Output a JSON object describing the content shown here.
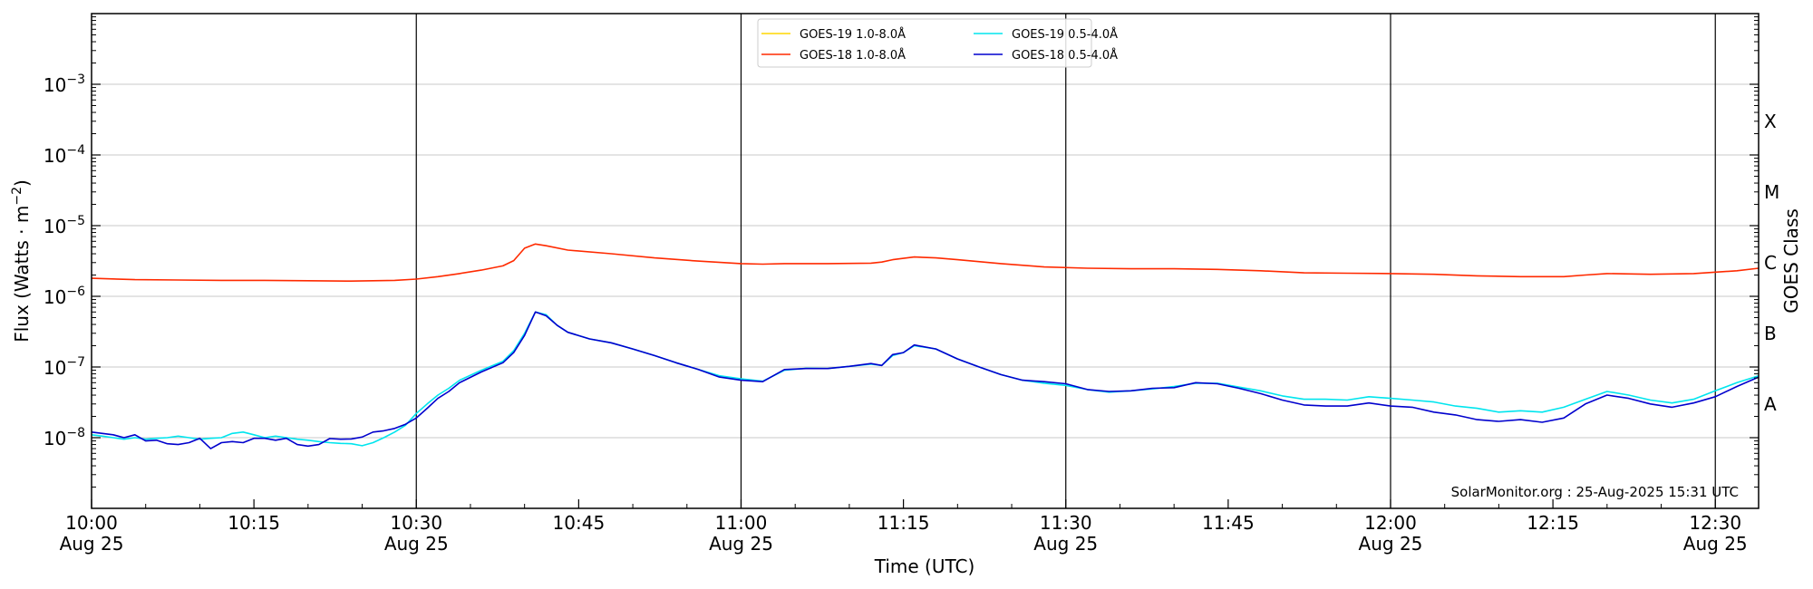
{
  "chart_data": {
    "type": "line",
    "xlabel": "Time (UTC)",
    "ylabel_main": "Flux (Watts · m",
    "ylabel_sup": "−2",
    "ylabel_close": ")",
    "ylabel_right": "GOES Class",
    "y_scale": "log",
    "ylim": [
      1e-09,
      0.01
    ],
    "xlim_minutes_after_1000": [
      0,
      154
    ],
    "grid": "horizontal",
    "legend_position": "top-center",
    "credit": "SolarMonitor.org : 25-Aug-2025 15:31 UTC",
    "y_ticks": [
      {
        "value": 1e-08,
        "base": "10",
        "exp": "−8"
      },
      {
        "value": 1e-07,
        "base": "10",
        "exp": "−7"
      },
      {
        "value": 1e-06,
        "base": "10",
        "exp": "−6"
      },
      {
        "value": 1e-05,
        "base": "10",
        "exp": "−5"
      },
      {
        "value": 0.0001,
        "base": "10",
        "exp": "−4"
      },
      {
        "value": 0.001,
        "base": "10",
        "exp": "−3"
      }
    ],
    "class_labels": [
      {
        "label": "A",
        "value": 3e-08
      },
      {
        "label": "B",
        "value": 3e-07
      },
      {
        "label": "C",
        "value": 3e-06
      },
      {
        "label": "M",
        "value": 3e-05
      },
      {
        "label": "X",
        "value": 0.0003
      }
    ],
    "x_ticks": [
      {
        "minute": 0,
        "time": "10:00",
        "date": "Aug 25"
      },
      {
        "minute": 15,
        "time": "10:15",
        "date": ""
      },
      {
        "minute": 30,
        "time": "10:30",
        "date": "Aug 25"
      },
      {
        "minute": 45,
        "time": "10:45",
        "date": ""
      },
      {
        "minute": 60,
        "time": "11:00",
        "date": "Aug 25"
      },
      {
        "minute": 75,
        "time": "11:15",
        "date": ""
      },
      {
        "minute": 90,
        "time": "11:30",
        "date": "Aug 25"
      },
      {
        "minute": 105,
        "time": "11:45",
        "date": ""
      },
      {
        "minute": 120,
        "time": "12:00",
        "date": "Aug 25"
      },
      {
        "minute": 135,
        "time": "12:15",
        "date": ""
      },
      {
        "minute": 150,
        "time": "12:30",
        "date": "Aug 25"
      }
    ],
    "vertical_lines_minutes": [
      30,
      60,
      90,
      120,
      150
    ],
    "series": [
      {
        "name": "GOES-19 1.0-8.0Å",
        "color": "#ffd700",
        "points": []
      },
      {
        "name": "GOES-18 1.0-8.0Å",
        "color": "#ff2a00",
        "points": [
          [
            0,
            1.8e-06
          ],
          [
            4,
            1.72e-06
          ],
          [
            8,
            1.7e-06
          ],
          [
            12,
            1.68e-06
          ],
          [
            16,
            1.68e-06
          ],
          [
            20,
            1.66e-06
          ],
          [
            24,
            1.64e-06
          ],
          [
            28,
            1.68e-06
          ],
          [
            30,
            1.75e-06
          ],
          [
            32,
            1.9e-06
          ],
          [
            34,
            2.1e-06
          ],
          [
            36,
            2.35e-06
          ],
          [
            38,
            2.7e-06
          ],
          [
            39,
            3.2e-06
          ],
          [
            40,
            4.8e-06
          ],
          [
            41,
            5.5e-06
          ],
          [
            42,
            5.2e-06
          ],
          [
            44,
            4.5e-06
          ],
          [
            48,
            4e-06
          ],
          [
            52,
            3.5e-06
          ],
          [
            56,
            3.15e-06
          ],
          [
            60,
            2.9e-06
          ],
          [
            62,
            2.85e-06
          ],
          [
            64,
            2.9e-06
          ],
          [
            68,
            2.9e-06
          ],
          [
            72,
            2.95e-06
          ],
          [
            73,
            3.05e-06
          ],
          [
            74,
            3.3e-06
          ],
          [
            76,
            3.6e-06
          ],
          [
            78,
            3.5e-06
          ],
          [
            80,
            3.3e-06
          ],
          [
            84,
            2.9e-06
          ],
          [
            88,
            2.6e-06
          ],
          [
            92,
            2.5e-06
          ],
          [
            96,
            2.45e-06
          ],
          [
            100,
            2.45e-06
          ],
          [
            104,
            2.4e-06
          ],
          [
            108,
            2.3e-06
          ],
          [
            112,
            2.15e-06
          ],
          [
            116,
            2.12e-06
          ],
          [
            120,
            2.1e-06
          ],
          [
            124,
            2.05e-06
          ],
          [
            128,
            1.95e-06
          ],
          [
            132,
            1.9e-06
          ],
          [
            136,
            1.9e-06
          ],
          [
            138,
            2e-06
          ],
          [
            140,
            2.1e-06
          ],
          [
            144,
            2.05e-06
          ],
          [
            148,
            2.1e-06
          ],
          [
            152,
            2.3e-06
          ],
          [
            154,
            2.5e-06
          ]
        ]
      },
      {
        "name": "GOES-19 0.5-4.0Å",
        "color": "#00e5ee",
        "points": [
          [
            0,
            1.1e-08
          ],
          [
            1,
            1.05e-08
          ],
          [
            2,
            1e-08
          ],
          [
            3,
            9.5e-09
          ],
          [
            4,
            1e-08
          ],
          [
            5,
            9.5e-09
          ],
          [
            6,
            9.8e-09
          ],
          [
            7,
            1e-08
          ],
          [
            8,
            1.05e-08
          ],
          [
            9,
            1e-08
          ],
          [
            10,
            9.5e-09
          ],
          [
            11,
            9.8e-09
          ],
          [
            12,
            1e-08
          ],
          [
            13,
            1.15e-08
          ],
          [
            14,
            1.2e-08
          ],
          [
            15,
            1.1e-08
          ],
          [
            16,
            1e-08
          ],
          [
            17,
            1.05e-08
          ],
          [
            18,
            1e-08
          ],
          [
            19,
            9.5e-09
          ],
          [
            20,
            9.2e-09
          ],
          [
            21,
            8.8e-09
          ],
          [
            22,
            8.5e-09
          ],
          [
            23,
            8.3e-09
          ],
          [
            24,
            8.2e-09
          ],
          [
            25,
            7.7e-09
          ],
          [
            26,
            8.5e-09
          ],
          [
            27,
            1e-08
          ],
          [
            28,
            1.2e-08
          ],
          [
            29,
            1.5e-08
          ],
          [
            30,
            2.2e-08
          ],
          [
            31,
            3e-08
          ],
          [
            32,
            4e-08
          ],
          [
            33,
            5e-08
          ],
          [
            34,
            6.5e-08
          ],
          [
            36,
            9e-08
          ],
          [
            38,
            1.2e-07
          ],
          [
            39,
            1.7e-07
          ],
          [
            40,
            3e-07
          ],
          [
            41,
            6e-07
          ],
          [
            42,
            5.5e-07
          ],
          [
            43,
            3.9e-07
          ],
          [
            44,
            3.1e-07
          ],
          [
            46,
            2.5e-07
          ],
          [
            48,
            2.2e-07
          ],
          [
            50,
            1.8e-07
          ],
          [
            52,
            1.45e-07
          ],
          [
            54,
            1.15e-07
          ],
          [
            56,
            9.3e-08
          ],
          [
            58,
            7.5e-08
          ],
          [
            60,
            6.8e-08
          ],
          [
            62,
            6.3e-08
          ],
          [
            64,
            9e-08
          ],
          [
            66,
            9.6e-08
          ],
          [
            68,
            9.5e-08
          ],
          [
            70,
            1.02e-07
          ],
          [
            72,
            1.1e-07
          ],
          [
            73,
            1.05e-07
          ],
          [
            74,
            1.45e-07
          ],
          [
            75,
            1.6e-07
          ],
          [
            76,
            2e-07
          ],
          [
            78,
            1.8e-07
          ],
          [
            80,
            1.3e-07
          ],
          [
            82,
            1e-07
          ],
          [
            84,
            7.8e-08
          ],
          [
            86,
            6.5e-08
          ],
          [
            88,
            5.9e-08
          ],
          [
            90,
            5.5e-08
          ],
          [
            92,
            4.8e-08
          ],
          [
            94,
            4.4e-08
          ],
          [
            96,
            4.6e-08
          ],
          [
            98,
            4.9e-08
          ],
          [
            100,
            5.3e-08
          ],
          [
            102,
            5.9e-08
          ],
          [
            104,
            5.9e-08
          ],
          [
            106,
            5.2e-08
          ],
          [
            108,
            4.6e-08
          ],
          [
            110,
            3.9e-08
          ],
          [
            112,
            3.5e-08
          ],
          [
            114,
            3.5e-08
          ],
          [
            116,
            3.4e-08
          ],
          [
            118,
            3.8e-08
          ],
          [
            120,
            3.6e-08
          ],
          [
            122,
            3.4e-08
          ],
          [
            124,
            3.2e-08
          ],
          [
            126,
            2.8e-08
          ],
          [
            128,
            2.6e-08
          ],
          [
            130,
            2.3e-08
          ],
          [
            132,
            2.4e-08
          ],
          [
            134,
            2.3e-08
          ],
          [
            136,
            2.7e-08
          ],
          [
            138,
            3.5e-08
          ],
          [
            140,
            4.5e-08
          ],
          [
            142,
            4e-08
          ],
          [
            144,
            3.4e-08
          ],
          [
            146,
            3.1e-08
          ],
          [
            148,
            3.5e-08
          ],
          [
            150,
            4.6e-08
          ],
          [
            152,
            6e-08
          ],
          [
            154,
            7.5e-08
          ]
        ]
      },
      {
        "name": "GOES-18 0.5-4.0Å",
        "color": "#0000cd",
        "points": [
          [
            0,
            1.2e-08
          ],
          [
            1,
            1.15e-08
          ],
          [
            2,
            1.1e-08
          ],
          [
            3,
            1e-08
          ],
          [
            4,
            1.1e-08
          ],
          [
            5,
            9e-09
          ],
          [
            6,
            9.2e-09
          ],
          [
            7,
            8.2e-09
          ],
          [
            8,
            8e-09
          ],
          [
            9,
            8.5e-09
          ],
          [
            10,
            9.8e-09
          ],
          [
            11,
            7e-09
          ],
          [
            12,
            8.5e-09
          ],
          [
            13,
            8.8e-09
          ],
          [
            14,
            8.5e-09
          ],
          [
            15,
            9.8e-09
          ],
          [
            16,
            9.8e-09
          ],
          [
            17,
            9.2e-09
          ],
          [
            18,
            9.8e-09
          ],
          [
            19,
            8e-09
          ],
          [
            20,
            7.6e-09
          ],
          [
            21,
            8e-09
          ],
          [
            22,
            9.7e-09
          ],
          [
            23,
            9.5e-09
          ],
          [
            24,
            9.6e-09
          ],
          [
            25,
            1.02e-08
          ],
          [
            26,
            1.2e-08
          ],
          [
            27,
            1.25e-08
          ],
          [
            28,
            1.35e-08
          ],
          [
            29,
            1.55e-08
          ],
          [
            30,
            1.9e-08
          ],
          [
            31,
            2.6e-08
          ],
          [
            32,
            3.6e-08
          ],
          [
            33,
            4.5e-08
          ],
          [
            34,
            6e-08
          ],
          [
            36,
            8.5e-08
          ],
          [
            38,
            1.15e-07
          ],
          [
            39,
            1.6e-07
          ],
          [
            40,
            2.8e-07
          ],
          [
            41,
            6e-07
          ],
          [
            42,
            5.3e-07
          ],
          [
            43,
            3.9e-07
          ],
          [
            44,
            3.1e-07
          ],
          [
            46,
            2.5e-07
          ],
          [
            48,
            2.2e-07
          ],
          [
            50,
            1.8e-07
          ],
          [
            52,
            1.45e-07
          ],
          [
            54,
            1.15e-07
          ],
          [
            56,
            9.3e-08
          ],
          [
            58,
            7.2e-08
          ],
          [
            60,
            6.5e-08
          ],
          [
            62,
            6.2e-08
          ],
          [
            64,
            9.2e-08
          ],
          [
            66,
            9.5e-08
          ],
          [
            68,
            9.5e-08
          ],
          [
            70,
            1.02e-07
          ],
          [
            72,
            1.12e-07
          ],
          [
            73,
            1.05e-07
          ],
          [
            74,
            1.5e-07
          ],
          [
            75,
            1.6e-07
          ],
          [
            76,
            2.05e-07
          ],
          [
            78,
            1.8e-07
          ],
          [
            80,
            1.3e-07
          ],
          [
            82,
            1e-07
          ],
          [
            84,
            7.8e-08
          ],
          [
            86,
            6.5e-08
          ],
          [
            88,
            6.2e-08
          ],
          [
            90,
            5.8e-08
          ],
          [
            92,
            4.8e-08
          ],
          [
            94,
            4.5e-08
          ],
          [
            96,
            4.6e-08
          ],
          [
            98,
            5e-08
          ],
          [
            100,
            5.1e-08
          ],
          [
            102,
            6e-08
          ],
          [
            104,
            5.8e-08
          ],
          [
            106,
            5e-08
          ],
          [
            108,
            4.2e-08
          ],
          [
            110,
            3.4e-08
          ],
          [
            112,
            2.9e-08
          ],
          [
            114,
            2.8e-08
          ],
          [
            116,
            2.8e-08
          ],
          [
            118,
            3.1e-08
          ],
          [
            120,
            2.8e-08
          ],
          [
            122,
            2.7e-08
          ],
          [
            124,
            2.3e-08
          ],
          [
            126,
            2.1e-08
          ],
          [
            128,
            1.8e-08
          ],
          [
            130,
            1.7e-08
          ],
          [
            132,
            1.8e-08
          ],
          [
            134,
            1.65e-08
          ],
          [
            136,
            1.9e-08
          ],
          [
            138,
            3e-08
          ],
          [
            140,
            4e-08
          ],
          [
            142,
            3.6e-08
          ],
          [
            144,
            3e-08
          ],
          [
            146,
            2.7e-08
          ],
          [
            148,
            3.1e-08
          ],
          [
            150,
            3.8e-08
          ],
          [
            152,
            5.3e-08
          ],
          [
            154,
            7.2e-08
          ]
        ]
      }
    ]
  }
}
